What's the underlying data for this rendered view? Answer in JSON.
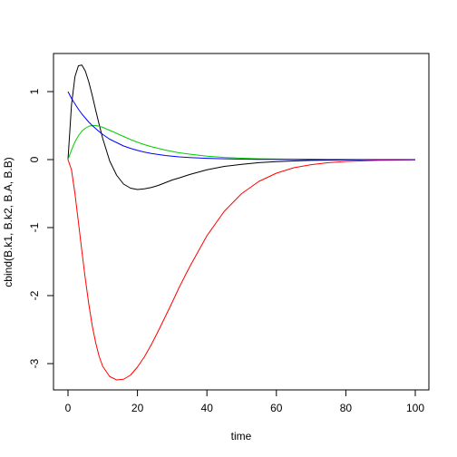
{
  "chart_data": {
    "type": "line",
    "title": "",
    "xlabel": "time",
    "ylabel": "cbind(B.k1, B.k2, B.A, B.B)",
    "xlim": [
      0,
      100
    ],
    "ylim": [
      -3.25,
      1.4
    ],
    "x_ticks": [
      0,
      20,
      40,
      60,
      80,
      100
    ],
    "y_ticks": [
      -3,
      -2,
      -1,
      0,
      1
    ],
    "x_tick_labels": [
      "0",
      "20",
      "40",
      "60",
      "80",
      "100"
    ],
    "y_tick_labels": [
      "-3",
      "-2",
      "-1",
      "0",
      "1"
    ],
    "grid": false,
    "legend": "none",
    "x": [
      0,
      1,
      2,
      3,
      4,
      5,
      6,
      7,
      8,
      9,
      10,
      12,
      14,
      16,
      18,
      20,
      22,
      24,
      26,
      28,
      30,
      32,
      35,
      40,
      45,
      50,
      55,
      60,
      65,
      70,
      75,
      80,
      90,
      100
    ],
    "series": [
      {
        "color": "#000000",
        "values": [
          0,
          0.8,
          1.22,
          1.38,
          1.39,
          1.3,
          1.14,
          0.94,
          0.72,
          0.51,
          0.31,
          -0.02,
          -0.23,
          -0.36,
          -0.42,
          -0.44,
          -0.43,
          -0.41,
          -0.38,
          -0.34,
          -0.3,
          -0.27,
          -0.22,
          -0.15,
          -0.1,
          -0.07,
          -0.045,
          -0.03,
          -0.02,
          -0.012,
          -0.008,
          -0.005,
          -0.002,
          -0.001
        ]
      },
      {
        "color": "#ff0000",
        "values": [
          0,
          -0.15,
          -0.5,
          -0.92,
          -1.35,
          -1.76,
          -2.13,
          -2.45,
          -2.7,
          -2.9,
          -3.04,
          -3.19,
          -3.24,
          -3.23,
          -3.17,
          -3.05,
          -2.9,
          -2.72,
          -2.52,
          -2.31,
          -2.1,
          -1.88,
          -1.58,
          -1.12,
          -0.76,
          -0.5,
          -0.32,
          -0.2,
          -0.12,
          -0.075,
          -0.045,
          -0.027,
          -0.01,
          -0.003
        ]
      },
      {
        "color": "#00cd00",
        "values": [
          0,
          0.14,
          0.26,
          0.35,
          0.42,
          0.46,
          0.49,
          0.5,
          0.5,
          0.49,
          0.475,
          0.43,
          0.385,
          0.34,
          0.295,
          0.255,
          0.22,
          0.19,
          0.165,
          0.14,
          0.12,
          0.1,
          0.08,
          0.05,
          0.032,
          0.02,
          0.012,
          0.008,
          0.005,
          0.003,
          0.002,
          0.001,
          0.0005,
          0.0002
        ]
      },
      {
        "color": "#0000ff",
        "values": [
          1,
          0.9,
          0.82,
          0.74,
          0.67,
          0.61,
          0.55,
          0.5,
          0.455,
          0.41,
          0.37,
          0.3,
          0.25,
          0.2,
          0.165,
          0.135,
          0.11,
          0.09,
          0.075,
          0.06,
          0.05,
          0.04,
          0.03,
          0.018,
          0.011,
          0.0067,
          0.004,
          0.0025,
          0.0015,
          0.0009,
          0.0006,
          0.0003,
          0.0001,
          5e-05
        ]
      }
    ]
  }
}
